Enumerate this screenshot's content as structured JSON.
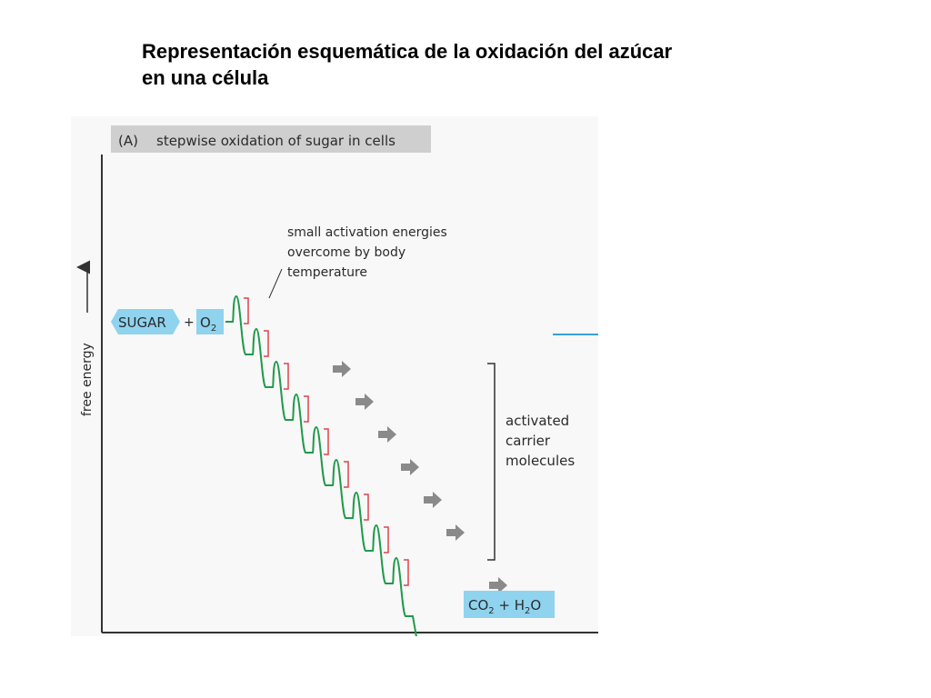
{
  "slide": {
    "title_line1": "Representación esquemática de la oxidación del azúcar",
    "title_line2": "en una célula"
  },
  "figure": {
    "panel_label": "(A)",
    "panel_title": "stepwise oxidation of sugar in cells",
    "axis_label": "free energy",
    "start_sugar": "SUGAR",
    "plus": "+",
    "start_oxygen": "O",
    "start_oxygen_sub": "2",
    "annotation_lines": [
      "small activation energies",
      "overcome by body",
      "temperature"
    ],
    "carrier_lines": [
      "activated",
      "carrier",
      "molecules"
    ],
    "product_co": "CO",
    "product_co_sub": "2",
    "product_mid": " + H",
    "product_h_sub": "2",
    "product_o": "O",
    "colors": {
      "label_box": "#8fd3ef",
      "header_bar": "#cfcfcf",
      "energy_path": "#1e9a4a",
      "activation_bracket": "#e0424b",
      "carrier_arrow": "#8a8a8a",
      "axis": "#333333",
      "reference_line": "#3aa0e0"
    },
    "step_count": 9,
    "carrier_arrow_count": 7
  }
}
